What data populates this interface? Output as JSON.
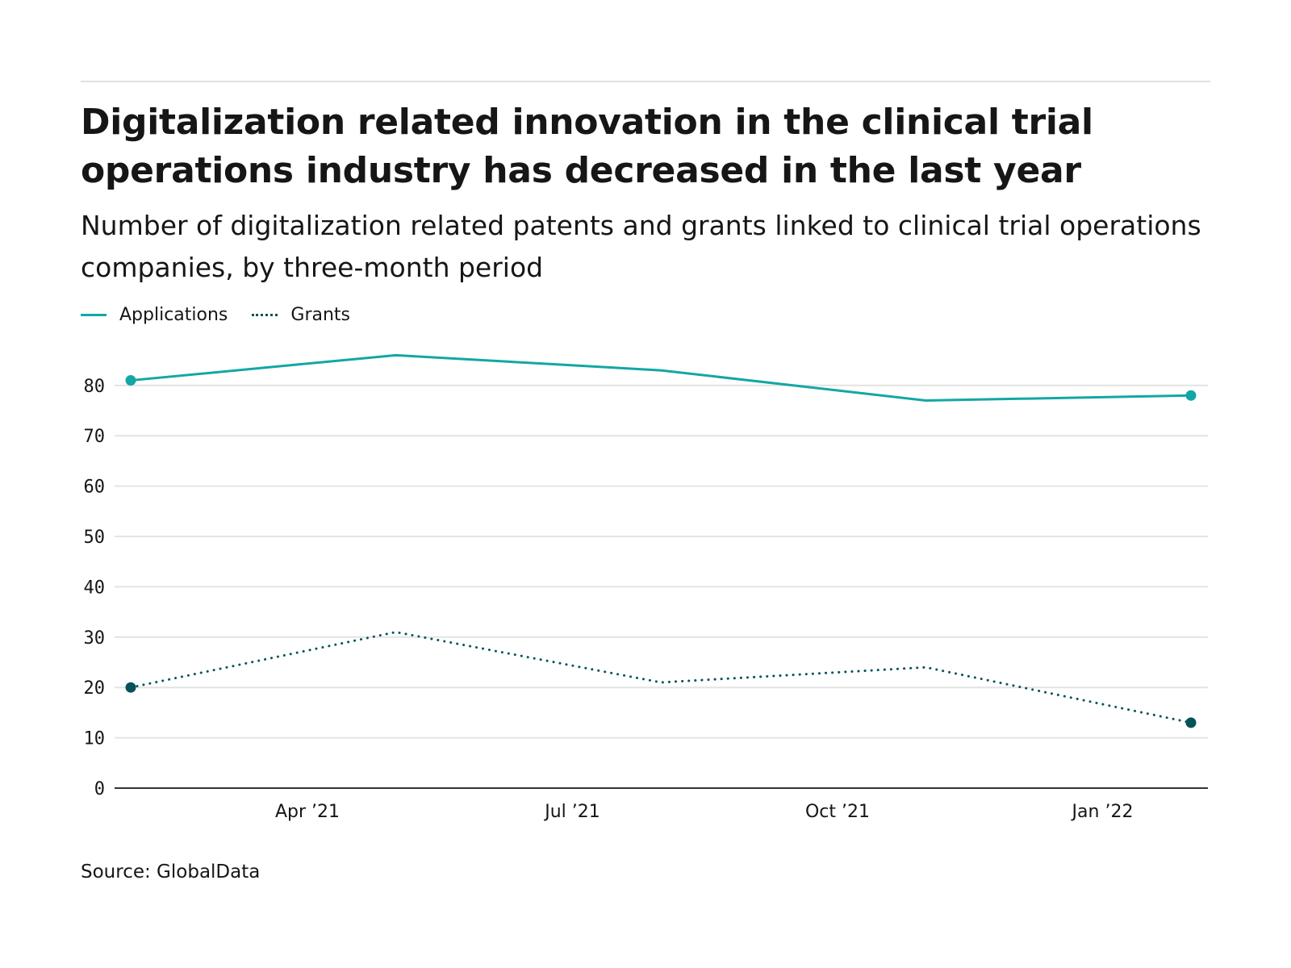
{
  "chart_data": {
    "type": "line",
    "title": "Digitalization related innovation in the clinical trial operations industry has decreased in the last year",
    "subtitle": "Number of digitalization related patents and grants linked to clinical trial operations companies, by three-month period",
    "source": "Source: GlobalData",
    "x": [
      "2021-02",
      "2021-05",
      "2021-08",
      "2021-11",
      "2022-02"
    ],
    "x_ticks": [
      "Apr ’21",
      "Jul ’21",
      "Oct ’21",
      "Jan ’22"
    ],
    "y_ticks": [
      0,
      10,
      20,
      30,
      40,
      50,
      60,
      70,
      80
    ],
    "ylim": [
      0,
      88
    ],
    "grid": true,
    "legend_position": "top-left",
    "series": [
      {
        "name": "Applications",
        "values": [
          81,
          86,
          83,
          77,
          78
        ],
        "color": "#13a6a6",
        "style": "solid"
      },
      {
        "name": "Grants",
        "values": [
          20,
          31,
          21,
          24,
          13
        ],
        "color": "#045357",
        "style": "dotted"
      }
    ]
  }
}
